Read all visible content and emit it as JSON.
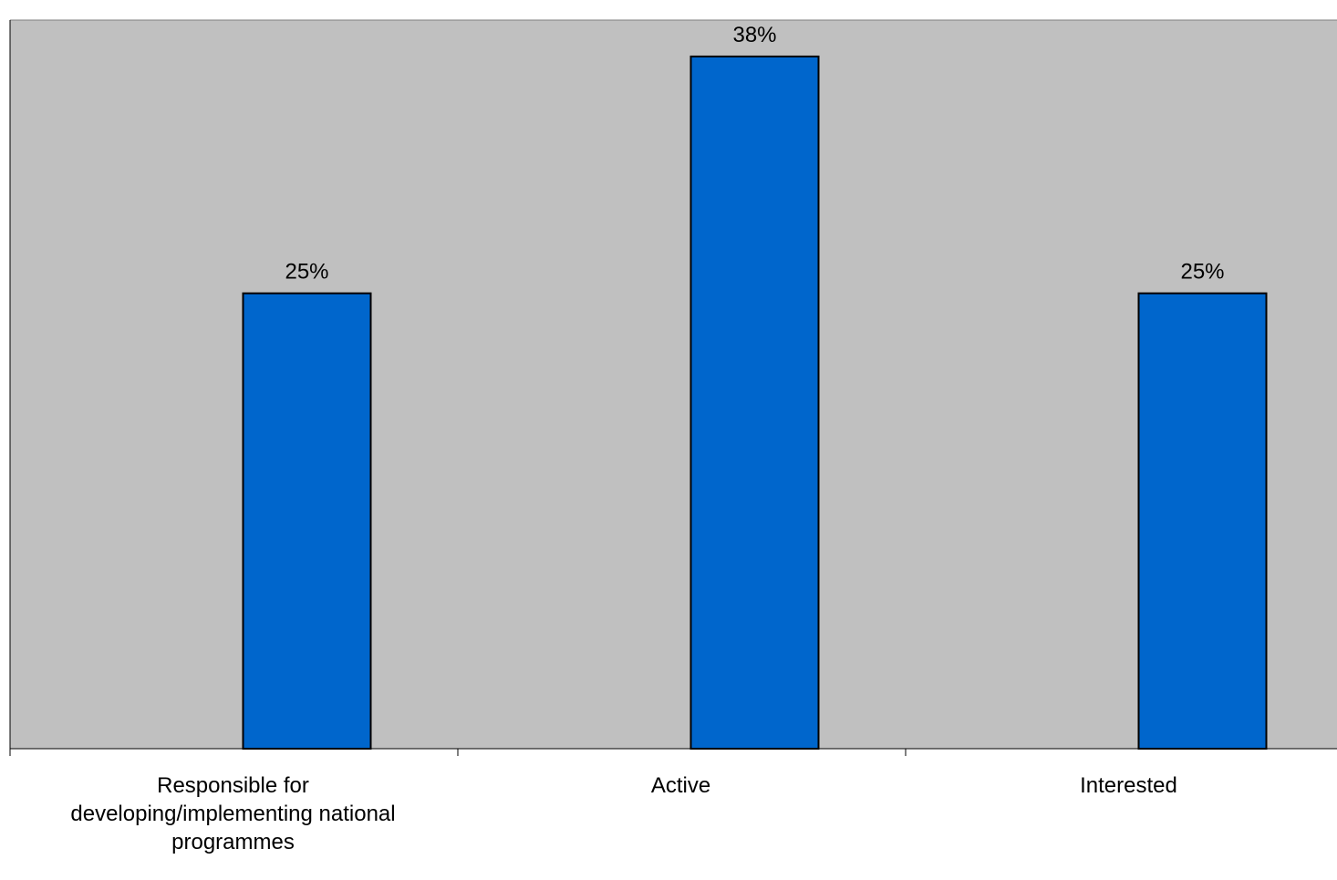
{
  "chart_data": {
    "type": "bar",
    "categories": [
      [
        "Responsible for",
        "developing/implementing national",
        "programmes"
      ],
      [
        "Active"
      ],
      [
        "Interested"
      ]
    ],
    "values": [
      25,
      38,
      25
    ],
    "data_labels": [
      "25%",
      "38%",
      "25%"
    ],
    "value_unit": "%",
    "ylim": [
      0,
      40
    ],
    "grid": false,
    "legend": "none",
    "colors": {
      "plot_background": "#c0c0c0",
      "bar_fill": "#0066cc",
      "bar_stroke": "#000000",
      "axis": "#000000"
    }
  }
}
